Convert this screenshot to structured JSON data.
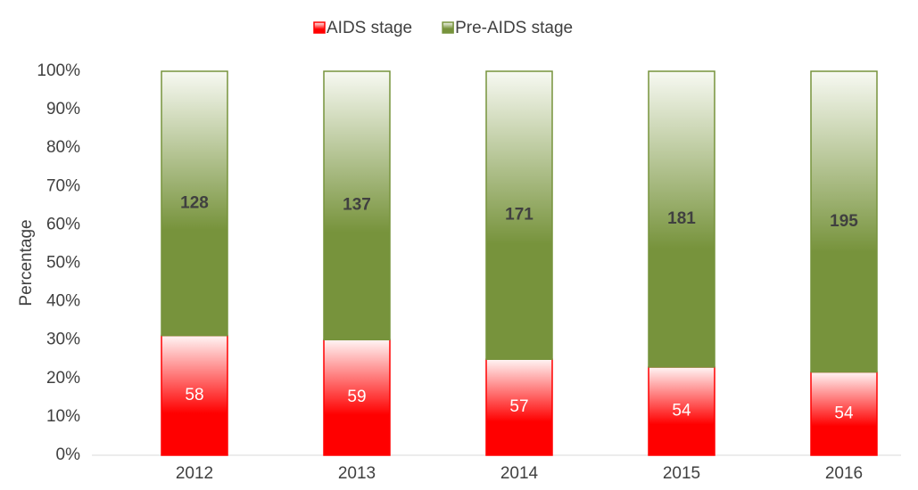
{
  "chart_data": {
    "type": "bar",
    "stacking": "percent",
    "y_axis_label": "Percentage",
    "categories": [
      "2012",
      "2013",
      "2014",
      "2015",
      "2016"
    ],
    "series": [
      {
        "name": "AIDS stage",
        "color": "#ff0000",
        "values": [
          58,
          59,
          57,
          54,
          54
        ]
      },
      {
        "name": "Pre-AIDS stage",
        "color": "#77933c",
        "values": [
          128,
          137,
          171,
          181,
          195
        ]
      }
    ],
    "ylim": [
      0,
      100
    ],
    "yticks": [
      {
        "value": 0,
        "label": "0%"
      },
      {
        "value": 10,
        "label": "10%"
      },
      {
        "value": 20,
        "label": "20%"
      },
      {
        "value": 30,
        "label": "30%"
      },
      {
        "value": 40,
        "label": "40%"
      },
      {
        "value": 50,
        "label": "50%"
      },
      {
        "value": 60,
        "label": "60%"
      },
      {
        "value": 70,
        "label": "70%"
      },
      {
        "value": 80,
        "label": "80%"
      },
      {
        "value": 90,
        "label": "90%"
      },
      {
        "value": 100,
        "label": "100%"
      }
    ],
    "legend": "top"
  }
}
